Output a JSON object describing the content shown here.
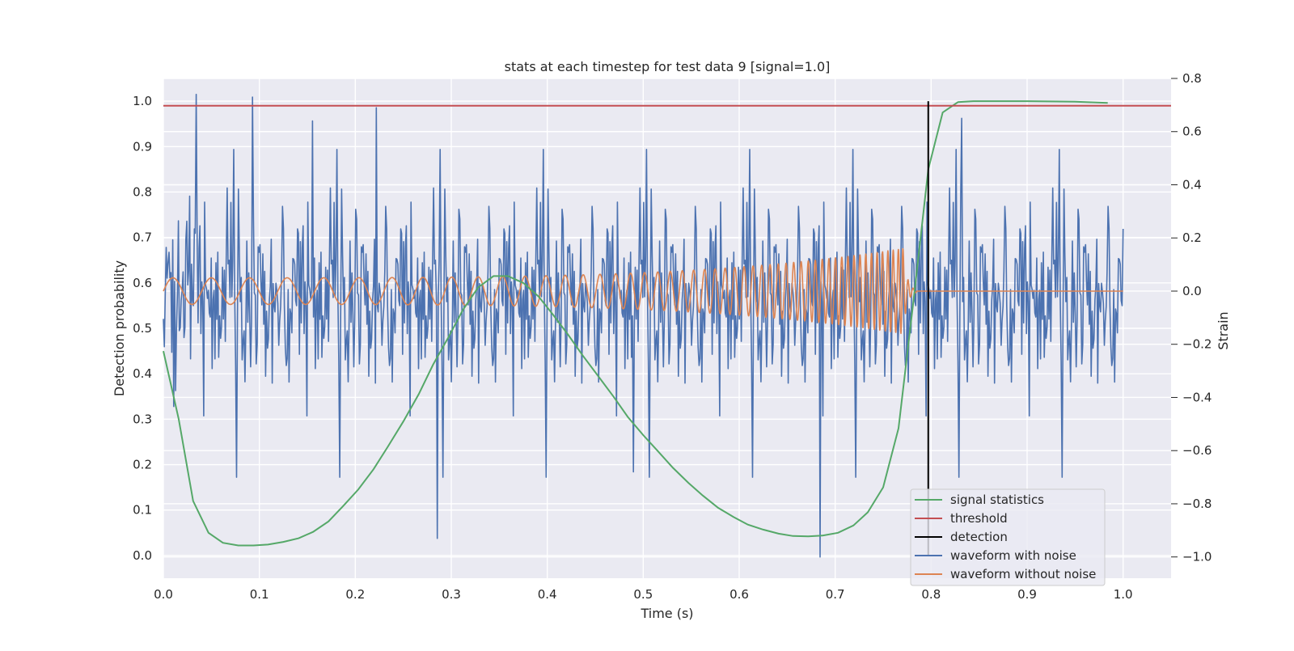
{
  "chart_data": {
    "type": "line",
    "title": "stats at each timestep for test data 9 [signal=1.0]",
    "xlabel": "Time (s)",
    "ylabel": "Detection probability",
    "y2label": "Strain",
    "xlim": [
      0.0,
      1.05
    ],
    "ylim": [
      -0.05,
      1.05
    ],
    "y2lim": [
      -1.08,
      0.8
    ],
    "grid": true,
    "legend_position": "lower right",
    "x_ticks": [
      0.0,
      0.1,
      0.2,
      0.3,
      0.4,
      0.5,
      0.6,
      0.7,
      0.8,
      0.9,
      1.0
    ],
    "x_tick_labels": [
      "0.0",
      "0.1",
      "0.2",
      "0.3",
      "0.4",
      "0.5",
      "0.6",
      "0.7",
      "0.8",
      "0.9",
      "1.0"
    ],
    "y_ticks": [
      0.0,
      0.1,
      0.2,
      0.3,
      0.4,
      0.5,
      0.6,
      0.7,
      0.8,
      0.9,
      1.0
    ],
    "y_tick_labels": [
      "0.0",
      "0.1",
      "0.2",
      "0.3",
      "0.4",
      "0.5",
      "0.6",
      "0.7",
      "0.8",
      "0.9",
      "1.0"
    ],
    "y2_ticks": [
      0.8,
      0.6,
      0.4,
      0.2,
      0.0,
      -0.2,
      -0.4,
      -0.6,
      -0.8,
      -1.0
    ],
    "y2_tick_labels": [
      "0.8",
      "0.6",
      "0.4",
      "0.2",
      "0.0",
      "−0.2",
      "−0.4",
      "−0.6",
      "−0.8",
      "−1.0"
    ],
    "series": [
      {
        "name": "signal statistics",
        "axis": "left",
        "color": "#55a868",
        "x": [
          0.0,
          0.016,
          0.031,
          0.047,
          0.062,
          0.078,
          0.094,
          0.109,
          0.125,
          0.141,
          0.156,
          0.172,
          0.187,
          0.203,
          0.219,
          0.234,
          0.25,
          0.266,
          0.281,
          0.297,
          0.312,
          0.328,
          0.344,
          0.359,
          0.375,
          0.391,
          0.406,
          0.422,
          0.437,
          0.453,
          0.469,
          0.484,
          0.5,
          0.516,
          0.531,
          0.547,
          0.562,
          0.578,
          0.594,
          0.609,
          0.625,
          0.641,
          0.656,
          0.672,
          0.687,
          0.703,
          0.719,
          0.734,
          0.75,
          0.766,
          0.781,
          0.797,
          0.812,
          0.828,
          0.844,
          0.9,
          0.95,
          0.984
        ],
        "y": [
          0.45,
          0.3,
          0.12,
          0.05,
          0.028,
          0.022,
          0.022,
          0.024,
          0.03,
          0.038,
          0.052,
          0.075,
          0.108,
          0.145,
          0.19,
          0.24,
          0.295,
          0.355,
          0.42,
          0.48,
          0.54,
          0.59,
          0.615,
          0.615,
          0.6,
          0.57,
          0.53,
          0.485,
          0.44,
          0.395,
          0.35,
          0.305,
          0.265,
          0.228,
          0.193,
          0.16,
          0.132,
          0.105,
          0.085,
          0.068,
          0.057,
          0.048,
          0.043,
          0.042,
          0.044,
          0.05,
          0.066,
          0.095,
          0.15,
          0.28,
          0.55,
          0.85,
          0.975,
          0.998,
          1.0,
          1.0,
          0.999,
          0.996
        ]
      },
      {
        "name": "threshold",
        "axis": "left",
        "color": "#c44e52",
        "x": [
          0.0,
          1.05
        ],
        "y": [
          0.99,
          0.99
        ]
      },
      {
        "name": "detection",
        "axis": "left",
        "color": "#000000",
        "x": [
          0.797,
          0.797
        ],
        "y": [
          0.0,
          1.0
        ]
      },
      {
        "name": "waveform with noise",
        "axis": "right",
        "color": "#4c72b0",
        "sample_count": 1024,
        "x_range": [
          0.0,
          1.0
        ],
        "noise_std": 0.2,
        "peaks": [
          [
            0.034,
            0.74
          ],
          [
            0.093,
            0.73
          ],
          [
            0.285,
            -0.93
          ],
          [
            0.684,
            -1.0
          ],
          [
            0.155,
            0.64
          ],
          [
            0.222,
            0.69
          ],
          [
            0.49,
            -0.68
          ],
          [
            0.832,
            0.65
          ]
        ]
      },
      {
        "name": "waveform without noise",
        "axis": "right",
        "color": "#dd8452",
        "amplitude_start": 0.05,
        "amplitude_peak": 0.16,
        "frequency_start_hz": 25,
        "frequency_end_hz": 190,
        "merger_time": 0.77,
        "ringdown_end": 0.785,
        "x_end": 1.0
      }
    ]
  }
}
